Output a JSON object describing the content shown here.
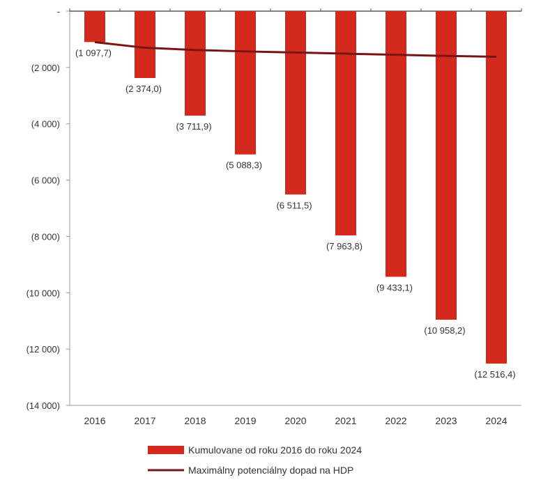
{
  "chart_data": {
    "type": "bar",
    "categories": [
      "2016",
      "2017",
      "2018",
      "2019",
      "2020",
      "2021",
      "2022",
      "2023",
      "2024"
    ],
    "y_ticks": [
      0,
      -2000,
      -4000,
      -6000,
      -8000,
      -10000,
      -12000,
      -14000
    ],
    "y_tick_labels": [
      "-",
      "(2 000)",
      "(4 000)",
      "(6 000)",
      "(8 000)",
      "(10 000)",
      "(12 000)",
      "(14 000)"
    ],
    "ylim": [
      -14000,
      0
    ],
    "grid": false,
    "legend_position": "bottom",
    "series": [
      {
        "name": "Kumulovane od roku 2016 do roku 2024",
        "type": "bar",
        "color": "#d42a1e",
        "values": [
          -1097.7,
          -2374.0,
          -3711.9,
          -5088.3,
          -6511.5,
          -7963.8,
          -9433.1,
          -10958.2,
          -12516.4
        ],
        "labels": [
          "(1 097,7)",
          "(2 374,0)",
          "(3 711,9)",
          "(5 088,3)",
          "(6 511,5)",
          "(7 963,8)",
          "(9 433,1)",
          "(10 958,2)",
          "(12 516,4)"
        ]
      },
      {
        "name": "Maximálny potenciálny dopad na HDP",
        "type": "line",
        "color": "#7a1414",
        "values": [
          -1100,
          -1300,
          -1380,
          -1430,
          -1470,
          -1510,
          -1550,
          -1590,
          -1620
        ]
      }
    ]
  }
}
